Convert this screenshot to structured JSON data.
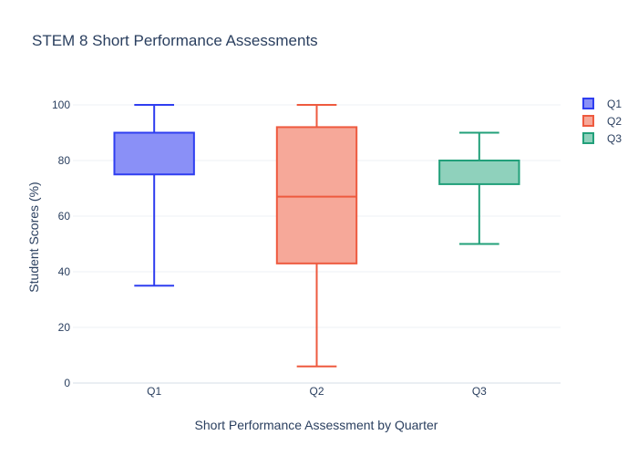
{
  "chart_data": {
    "type": "box",
    "title": "STEM 8 Short Performance Assessments",
    "xlabel": "Short Performance Assessment by Quarter",
    "ylabel": "Student Scores (%)",
    "ylim": [
      0,
      100
    ],
    "yticks": [
      0,
      20,
      40,
      60,
      80,
      100
    ],
    "categories": [
      "Q1",
      "Q2",
      "Q3"
    ],
    "series": [
      {
        "name": "Q1",
        "color": "#2f3ef0",
        "fill": "#8a90f7",
        "min": 35,
        "q1": 75,
        "median": 90,
        "q3": 90,
        "max": 100
      },
      {
        "name": "Q2",
        "color": "#ee5a3f",
        "fill": "#f6a899",
        "min": 6,
        "q1": 43,
        "median": 67,
        "q3": 92,
        "max": 100
      },
      {
        "name": "Q3",
        "color": "#22a07a",
        "fill": "#8fd1bc",
        "min": 50,
        "q1": 71.5,
        "median": 80,
        "q3": 80,
        "max": 90
      }
    ],
    "grid": "horizontal",
    "legend_position": "top-right"
  }
}
